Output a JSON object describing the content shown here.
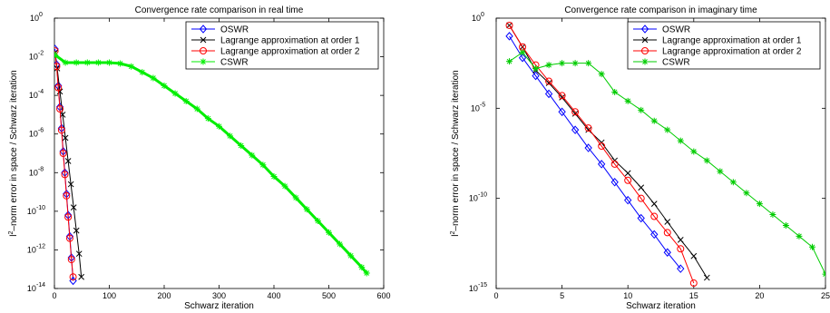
{
  "chart_data": [
    {
      "type": "line",
      "title": "Convergence rate comparison in real time",
      "xlabel": "Schwarz iteration",
      "ylabel_parts": [
        "l",
        "2",
        "–norm error in space / Schwarz iteration"
      ],
      "xlim": [
        0,
        600
      ],
      "ylim_exp": [
        -14,
        0
      ],
      "yscale": "log",
      "xticks": [
        "0",
        "100",
        "200",
        "300",
        "400",
        "500",
        "600"
      ],
      "yticks": [
        {
          "base": "10",
          "exp": "0"
        },
        {
          "base": "10",
          "exp": "-2"
        },
        {
          "base": "10",
          "exp": "-4"
        },
        {
          "base": "10",
          "exp": "-6"
        },
        {
          "base": "10",
          "exp": "-8"
        },
        {
          "base": "10",
          "exp": "-10"
        },
        {
          "base": "10",
          "exp": "-12"
        },
        {
          "base": "10",
          "exp": "-14"
        }
      ],
      "legend_position": "top-right",
      "series": [
        {
          "name": "OSWR",
          "color": "#0000ff",
          "marker": "diamond",
          "x": [
            1,
            4,
            7,
            10,
            13,
            16,
            19,
            22,
            25,
            28,
            31,
            34
          ],
          "y_exp": [
            -1.6,
            -2.4,
            -3.5,
            -4.6,
            -5.7,
            -6.9,
            -8.0,
            -9.1,
            -10.2,
            -11.3,
            -12.4,
            -13.6
          ]
        },
        {
          "name": "Lagrange approximation at order 1",
          "color": "#000000",
          "marker": "x",
          "x": [
            1,
            5,
            10,
            15,
            20,
            25,
            30,
            35,
            40,
            45,
            49
          ],
          "y_exp": [
            -1.8,
            -2.6,
            -3.8,
            -5.0,
            -6.2,
            -7.4,
            -8.6,
            -9.8,
            -11.0,
            -12.2,
            -13.4
          ]
        },
        {
          "name": "Lagrange approximation at order 2",
          "color": "#ff0000",
          "marker": "circle",
          "x": [
            1,
            4,
            7,
            10,
            13,
            16,
            19,
            22,
            25,
            28,
            31,
            34
          ],
          "y_exp": [
            -1.7,
            -2.5,
            -3.6,
            -4.7,
            -5.8,
            -7.0,
            -8.1,
            -9.2,
            -10.3,
            -11.4,
            -12.5,
            -13.4
          ]
        },
        {
          "name": "CSWR",
          "color": "#00ee00",
          "marker": "star",
          "x": [
            1,
            20,
            40,
            60,
            80,
            100,
            120,
            140,
            160,
            180,
            200,
            220,
            240,
            260,
            280,
            300,
            320,
            340,
            360,
            380,
            400,
            420,
            440,
            460,
            480,
            500,
            520,
            540,
            560,
            569
          ],
          "y_exp": [
            -1.9,
            -2.3,
            -2.3,
            -2.3,
            -2.3,
            -2.3,
            -2.35,
            -2.5,
            -2.8,
            -3.1,
            -3.5,
            -3.9,
            -4.3,
            -4.7,
            -5.2,
            -5.6,
            -6.1,
            -6.6,
            -7.1,
            -7.6,
            -8.2,
            -8.7,
            -9.3,
            -9.9,
            -10.5,
            -11.1,
            -11.7,
            -12.3,
            -12.9,
            -13.2
          ]
        }
      ]
    },
    {
      "type": "line",
      "title": "Convergence rate comparison in imaginary time",
      "xlabel": "Schwarz iteration",
      "ylabel_parts": [
        "l",
        "2",
        "–norm error in space / Schwarz iteration"
      ],
      "xlim": [
        0,
        25
      ],
      "ylim_exp": [
        -15,
        0
      ],
      "yscale": "log",
      "xticks": [
        "0",
        "5",
        "10",
        "15",
        "20",
        "25"
      ],
      "yticks": [
        {
          "base": "10",
          "exp": "0"
        },
        {
          "base": "10",
          "exp": "-5"
        },
        {
          "base": "10",
          "exp": "-10"
        },
        {
          "base": "10",
          "exp": "-15"
        }
      ],
      "legend_position": "top-right",
      "series": [
        {
          "name": "OSWR",
          "color": "#0000ff",
          "marker": "diamond",
          "x": [
            1,
            2,
            3,
            4,
            5,
            6,
            7,
            8,
            9,
            10,
            11,
            12,
            13,
            14
          ],
          "y_exp": [
            -1.0,
            -2.2,
            -3.2,
            -4.2,
            -5.2,
            -6.2,
            -7.2,
            -8.1,
            -9.1,
            -10.1,
            -11.1,
            -12.0,
            -13.0,
            -13.9
          ]
        },
        {
          "name": "Lagrange approximation at order 1",
          "color": "#000000",
          "marker": "x",
          "x": [
            1,
            2,
            3,
            4,
            5,
            6,
            7,
            8,
            9,
            10,
            11,
            12,
            13,
            14,
            15,
            16
          ],
          "y_exp": [
            -0.4,
            -1.6,
            -2.9,
            -3.6,
            -4.4,
            -5.3,
            -6.2,
            -6.9,
            -7.9,
            -8.6,
            -9.4,
            -10.3,
            -11.3,
            -12.3,
            -13.2,
            -14.4
          ]
        },
        {
          "name": "Lagrange approximation at order 2",
          "color": "#ff0000",
          "marker": "circle",
          "x": [
            1,
            2,
            3,
            4,
            5,
            6,
            7,
            8,
            9,
            10,
            11,
            12,
            13,
            14,
            15
          ],
          "y_exp": [
            -0.4,
            -1.6,
            -2.6,
            -3.5,
            -4.3,
            -5.2,
            -6.1,
            -7.1,
            -8.1,
            -9.0,
            -10.0,
            -11.0,
            -11.9,
            -12.8,
            -14.7
          ]
        },
        {
          "name": "CSWR",
          "color": "#00cc00",
          "marker": "star",
          "x": [
            1,
            2,
            3,
            4,
            5,
            6,
            7,
            8,
            9,
            10,
            11,
            12,
            13,
            14,
            15,
            16,
            17,
            18,
            19,
            20,
            21,
            22,
            23,
            24,
            25
          ],
          "y_exp": [
            -2.4,
            -1.9,
            -2.8,
            -2.6,
            -2.5,
            -2.5,
            -2.5,
            -3.1,
            -4.1,
            -4.6,
            -5.1,
            -5.7,
            -6.2,
            -6.8,
            -7.4,
            -7.9,
            -8.5,
            -9.1,
            -9.7,
            -10.3,
            -10.9,
            -11.5,
            -12.1,
            -12.7,
            -14.2
          ]
        }
      ]
    }
  ]
}
